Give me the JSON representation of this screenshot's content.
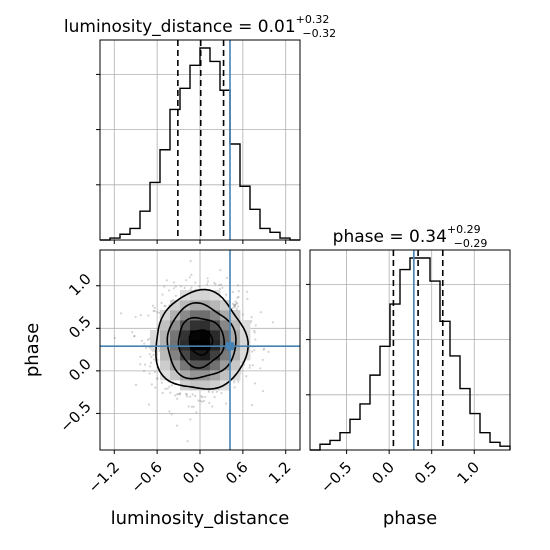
{
  "chart_data": [
    {
      "type": "histogram",
      "panel": "marginal-luminosity-distance",
      "title": {
        "prefix": "luminosity_distance = ",
        "value": "0.01",
        "upper": "+0.32",
        "lower": "−0.32"
      },
      "xlim": [
        -1.4,
        1.4
      ],
      "bin_edges": [
        -1.4,
        -1.26,
        -1.12,
        -0.98,
        -0.84,
        -0.7,
        -0.56,
        -0.42,
        -0.28,
        -0.14,
        0.0,
        0.14,
        0.28,
        0.42,
        0.56,
        0.7,
        0.84,
        0.98,
        1.12,
        1.26,
        1.4
      ],
      "counts": [
        0.0,
        0.01,
        0.03,
        0.06,
        0.15,
        0.3,
        0.47,
        0.68,
        0.79,
        0.91,
        1.0,
        0.93,
        0.78,
        0.5,
        0.28,
        0.16,
        0.06,
        0.04,
        0.01,
        0.0
      ],
      "quantiles": [
        -0.31,
        0.01,
        0.33
      ],
      "truth": 0.42,
      "grid": true
    },
    {
      "type": "histogram",
      "panel": "marginal-phase",
      "title": {
        "prefix": "phase = ",
        "value": "0.34",
        "upper": "+0.29",
        "lower": "−0.29"
      },
      "xlim": [
        -0.93,
        1.42
      ],
      "xticks": [
        -0.5,
        0.0,
        0.5,
        1.0
      ],
      "xtick_labels": [
        "−0.5",
        "0.0",
        "0.5",
        "1.0"
      ],
      "xlabel": "phase",
      "bin_edges": [
        -0.93,
        -0.8125,
        -0.695,
        -0.5775,
        -0.46,
        -0.3425,
        -0.225,
        -0.1075,
        0.01,
        0.1275,
        0.245,
        0.3625,
        0.48,
        0.5975,
        0.715,
        0.8325,
        0.95,
        1.0675,
        1.185,
        1.3025,
        1.42
      ],
      "counts": [
        0.0,
        0.03,
        0.05,
        0.09,
        0.16,
        0.24,
        0.39,
        0.54,
        0.76,
        0.94,
        1.0,
        1.0,
        0.88,
        0.67,
        0.49,
        0.32,
        0.19,
        0.09,
        0.04,
        0.02
      ],
      "quantiles": [
        0.05,
        0.34,
        0.63
      ],
      "truth": 0.29,
      "grid": true
    },
    {
      "type": "heatmap",
      "panel": "joint-2d",
      "xlabel": "luminosity_distance",
      "ylabel": "phase",
      "xlim": [
        -1.4,
        1.4
      ],
      "ylim": [
        -0.93,
        1.42
      ],
      "xticks": [
        -1.2,
        -0.6,
        0.0,
        0.6,
        1.2
      ],
      "xtick_labels": [
        "−1.2",
        "−0.6",
        "0.0",
        "0.6",
        "1.2"
      ],
      "yticks": [
        -0.5,
        0.0,
        0.5,
        1.0
      ],
      "ytick_labels": [
        "−0.5",
        "0.0",
        "0.5",
        "1.0"
      ],
      "center": [
        0.01,
        0.34
      ],
      "sigma": [
        0.32,
        0.29
      ],
      "truth": [
        0.42,
        0.29
      ],
      "contour_levels_sigma": [
        0.5,
        1.0,
        1.5,
        2.0
      ],
      "n_scatter": 1400,
      "grid": true,
      "colors": {
        "truth": "#4682b4",
        "contour": "#000000",
        "points": "#808080"
      }
    }
  ]
}
